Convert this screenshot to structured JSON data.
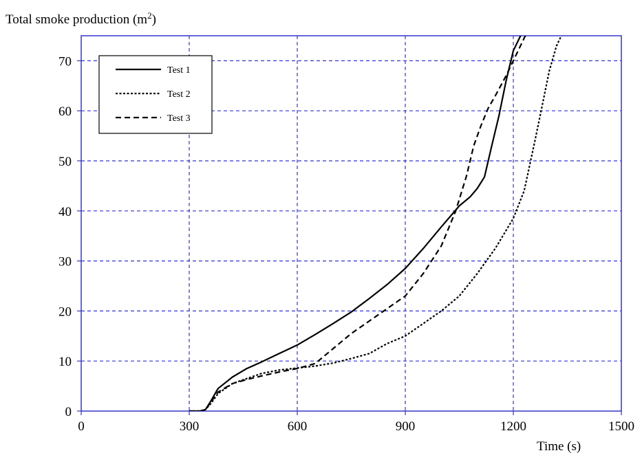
{
  "colors": {
    "grid": "#3333cc",
    "frame": "#3333cc",
    "series": "#000000",
    "text": "#000000"
  },
  "chart_data": {
    "type": "line",
    "ylabel_main": "Total smoke production (m",
    "ylabel_sup": "2",
    "ylabel_end": ")",
    "xlabel": "Time (s)",
    "xlim": [
      0,
      1500
    ],
    "ylim": [
      0,
      75
    ],
    "xticks": [
      0,
      300,
      600,
      900,
      1200,
      1500
    ],
    "yticks": [
      0,
      10,
      20,
      30,
      40,
      50,
      60,
      70
    ],
    "grid": true,
    "legend_position": "top-left",
    "series": [
      {
        "name": "Test 1",
        "dash": "solid",
        "x": [
          300,
          330,
          345,
          360,
          380,
          420,
          460,
          500,
          550,
          600,
          650,
          700,
          750,
          800,
          850,
          900,
          950,
          1000,
          1050,
          1080,
          1100,
          1120,
          1140,
          1160,
          1180,
          1200,
          1220,
          1240
        ],
        "y": [
          0,
          0,
          0.3,
          2,
          4.5,
          6.8,
          8.5,
          9.8,
          11.5,
          13.2,
          15.3,
          17.5,
          19.8,
          22.5,
          25.3,
          28.5,
          32.5,
          36.8,
          41,
          42.8,
          44.5,
          46.8,
          53,
          59,
          66,
          72,
          75,
          76
        ]
      },
      {
        "name": "Test 2",
        "dash": "dotted",
        "x": [
          300,
          330,
          345,
          360,
          380,
          420,
          460,
          500,
          550,
          600,
          650,
          700,
          750,
          800,
          850,
          900,
          950,
          1000,
          1050,
          1100,
          1150,
          1200,
          1230,
          1260,
          1280,
          1300,
          1320,
          1340,
          1360
        ],
        "y": [
          0,
          0,
          0.3,
          1.5,
          3.5,
          5.5,
          6.5,
          7.5,
          8.2,
          8.6,
          9,
          9.6,
          10.5,
          11.5,
          13.5,
          15,
          17.5,
          20,
          23,
          27.5,
          32.5,
          38.5,
          44,
          54,
          61,
          68,
          73,
          76,
          78
        ]
      },
      {
        "name": "Test 3",
        "dash": "dashed",
        "x": [
          300,
          330,
          345,
          360,
          380,
          420,
          460,
          500,
          550,
          600,
          650,
          700,
          750,
          800,
          850,
          900,
          950,
          1000,
          1040,
          1070,
          1090,
          1110,
          1130,
          1150,
          1180,
          1210,
          1240
        ],
        "y": [
          0,
          0,
          0.3,
          1.8,
          3.8,
          5.5,
          6.3,
          7,
          7.8,
          8.5,
          9.5,
          12.5,
          15.5,
          18,
          20.5,
          23,
          27.5,
          33,
          40,
          47,
          53,
          57,
          60.5,
          63,
          67,
          71.5,
          76
        ]
      }
    ]
  }
}
